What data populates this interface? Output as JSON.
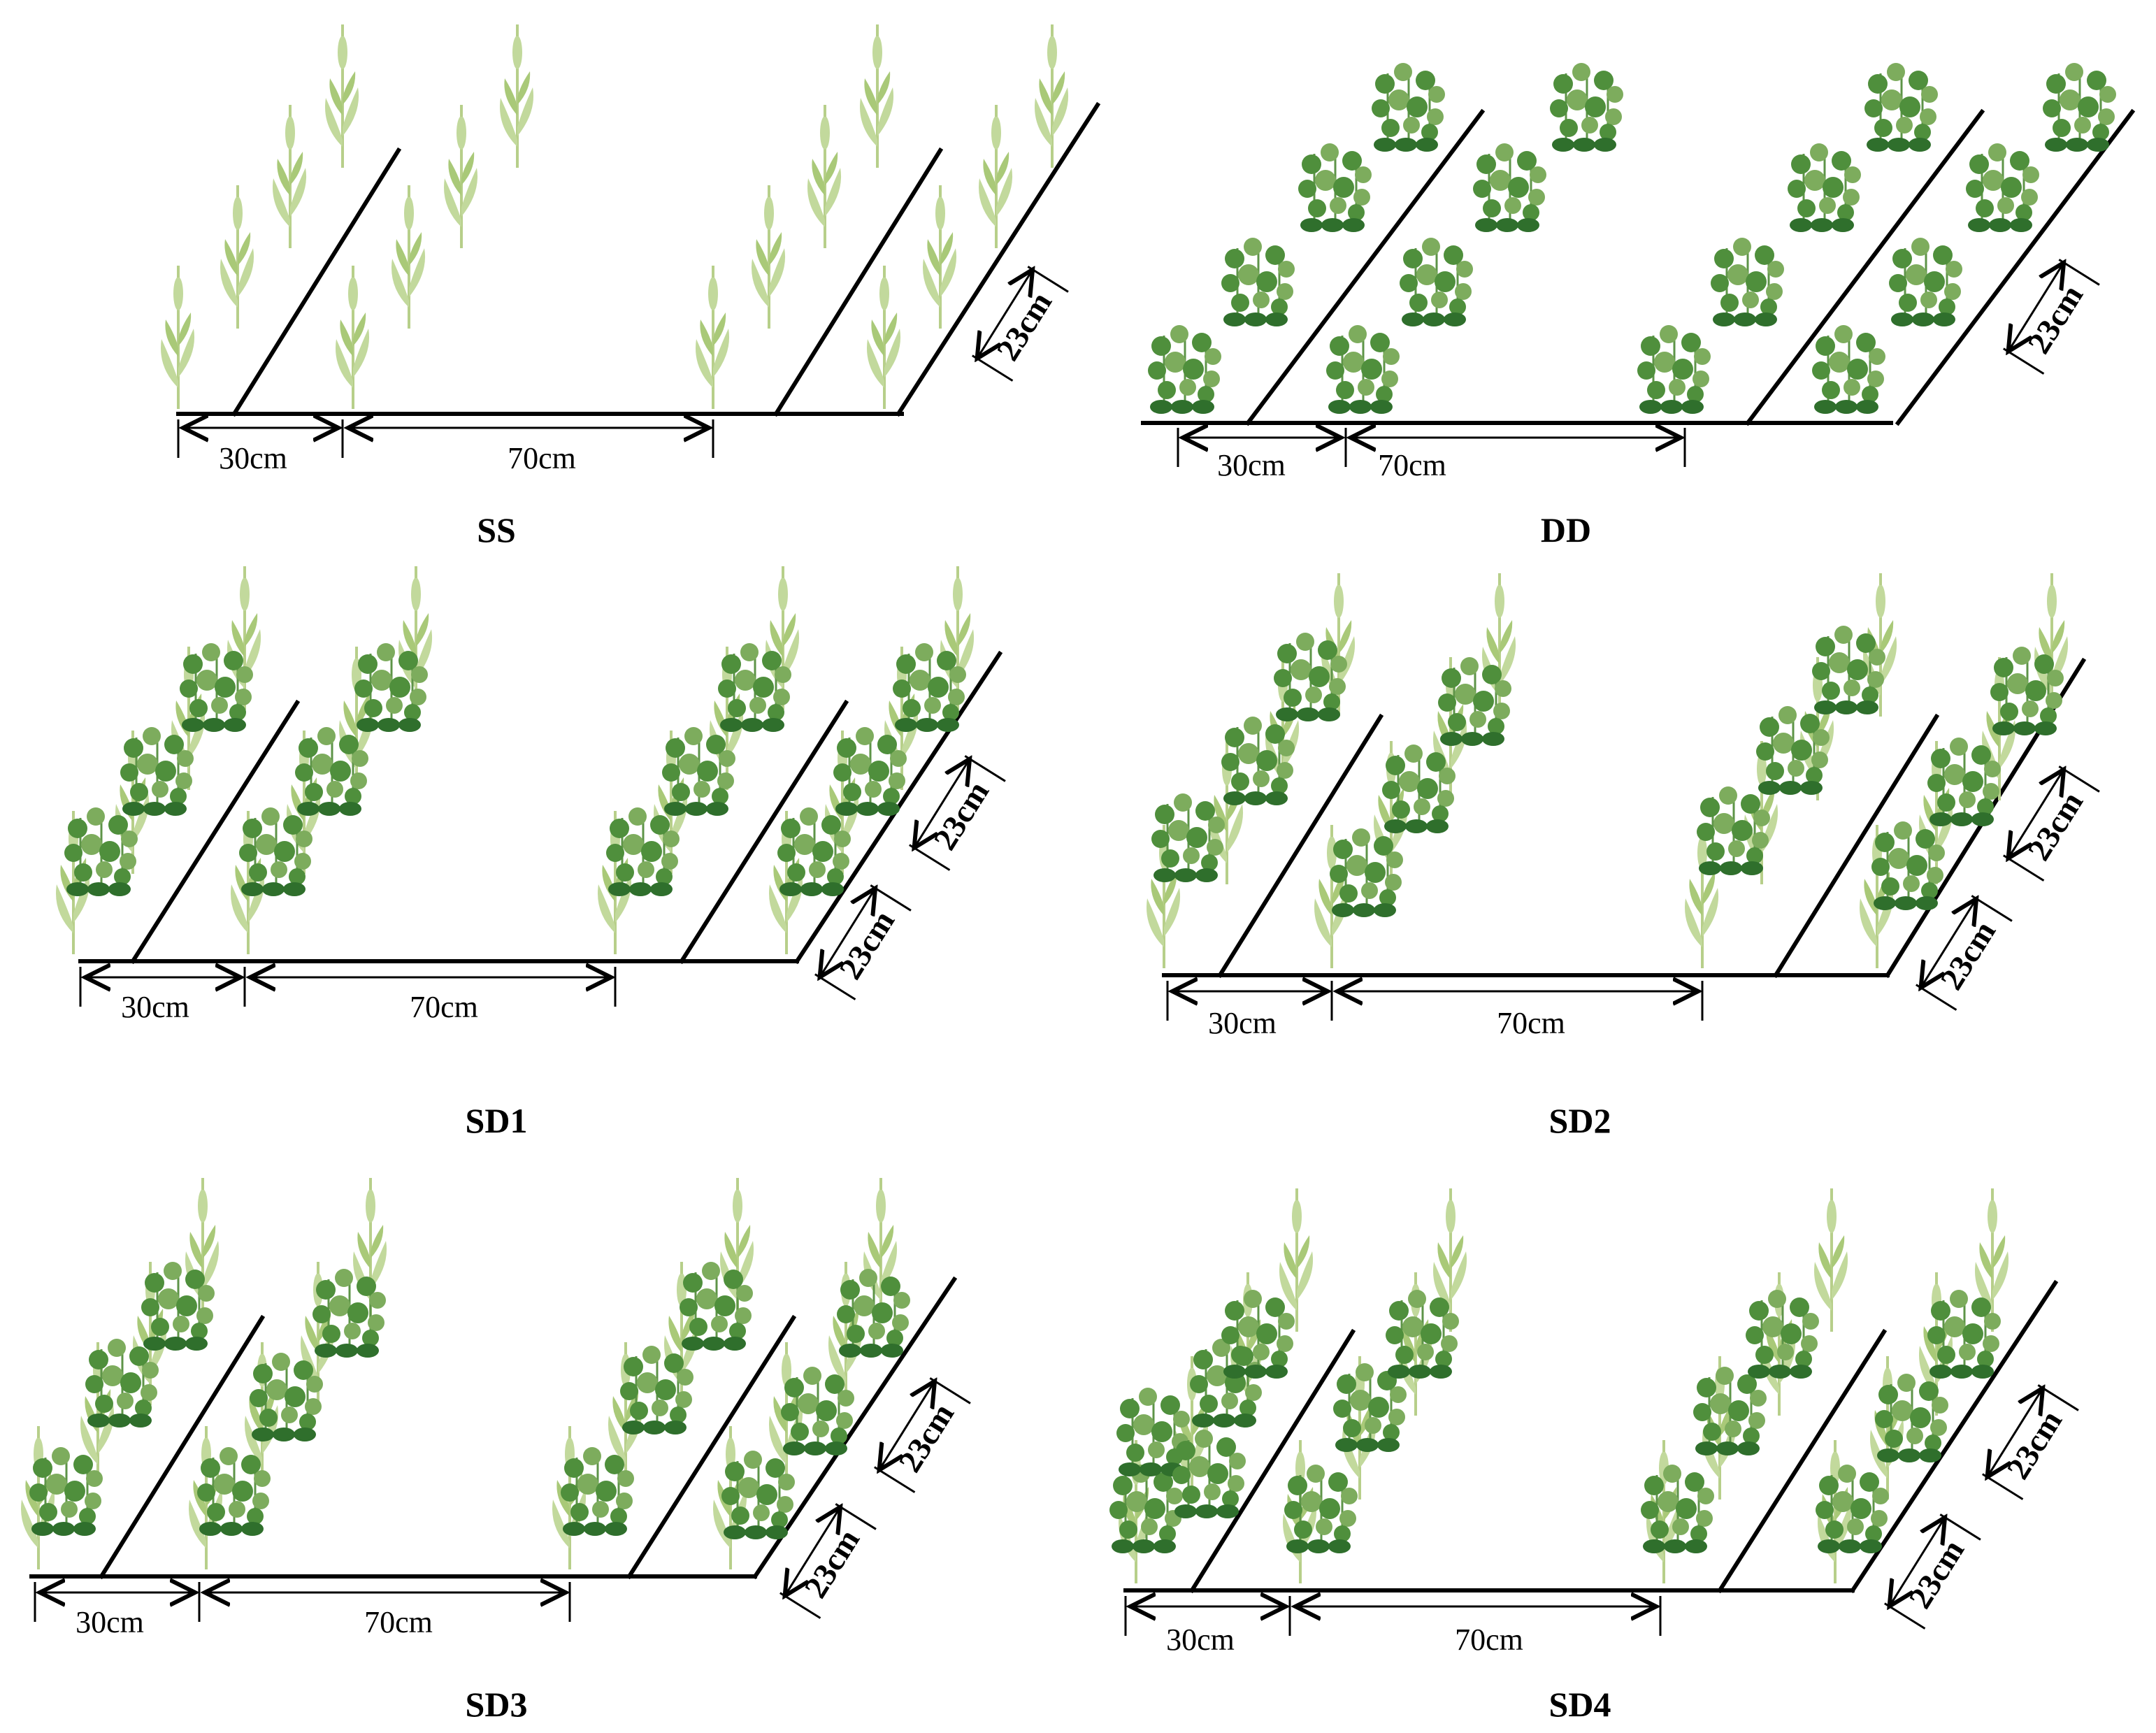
{
  "panels": [
    {
      "id": "SS",
      "title": "SS",
      "gap_narrow": "30cm",
      "gap_wide": "70cm",
      "row_spacing": [
        "23cm"
      ],
      "crop": "wheat"
    },
    {
      "id": "DD",
      "title": "DD",
      "gap_narrow": "30cm",
      "gap_wide": "70cm",
      "row_spacing": [
        "23cm"
      ],
      "crop": "pea"
    },
    {
      "id": "SD1",
      "title": "SD1",
      "gap_narrow": "30cm",
      "gap_wide": "70cm",
      "row_spacing": [
        "23cm",
        "23cm"
      ],
      "crop": "wheat+pea"
    },
    {
      "id": "SD2",
      "title": "SD2",
      "gap_narrow": "30cm",
      "gap_wide": "70cm",
      "row_spacing": [
        "23cm",
        "23cm"
      ],
      "crop": "wheat+pea"
    },
    {
      "id": "SD3",
      "title": "SD3",
      "gap_narrow": "30cm",
      "gap_wide": "70cm",
      "row_spacing": [
        "23cm",
        "23cm"
      ],
      "crop": "wheat+pea"
    },
    {
      "id": "SD4",
      "title": "SD4",
      "gap_narrow": "30cm",
      "gap_wide": "70cm",
      "row_spacing": [
        "23cm",
        "23cm"
      ],
      "crop": "wheat+pea"
    }
  ],
  "icons": {
    "wheat": "wheat-plant-icon",
    "pea": "pea-plant-icon"
  },
  "colors": {
    "wheat": "#c2d99c",
    "pea": "#4f8f3c",
    "line": "#000000"
  }
}
